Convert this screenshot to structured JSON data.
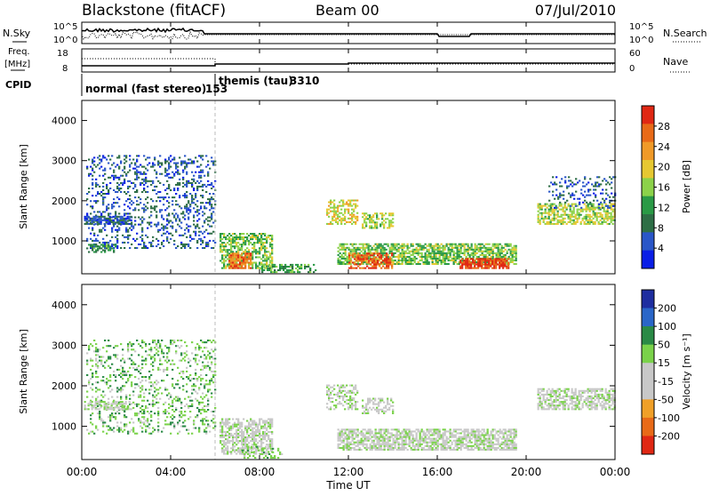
{
  "header": {
    "station": "Blackstone (fitACF)",
    "beam": "Beam 00",
    "date": "07/Jul/2010"
  },
  "noise_panel": {
    "left_label": "N.Sky",
    "right_label": "N.Search",
    "left_ticks": [
      "10^5",
      "10^0"
    ],
    "right_ticks": [
      "10^5",
      "10^0"
    ]
  },
  "freq_panel": {
    "left_label_lines": [
      "Freq.",
      "[MHz]"
    ],
    "right_label": "Nave",
    "left_ticks": [
      "18",
      "8"
    ],
    "right_ticks": [
      "60",
      "0"
    ]
  },
  "cpid": {
    "label": "CPID",
    "modes": [
      {
        "name": "normal (fast stereo)",
        "id": "153",
        "start_hour": 0,
        "end_hour": 6
      },
      {
        "name": "themis (tau)",
        "id": "3310",
        "start_hour": 6,
        "end_hour": 24
      }
    ]
  },
  "time_axis": {
    "label": "Time UT",
    "ticks": [
      "00:00",
      "04:00",
      "08:00",
      "12:00",
      "16:00",
      "20:00",
      "00:00"
    ],
    "range_hours": [
      0,
      24
    ]
  },
  "colors": {
    "power_scale": [
      "#0a1ee6",
      "#2a56c8",
      "#2e6e46",
      "#2a9a46",
      "#8cd24a",
      "#e6c832",
      "#f09a28",
      "#e86a18",
      "#e02814"
    ],
    "velocity_scale": [
      "#1e2ea0",
      "#2a66c8",
      "#2a8a46",
      "#7ad24a",
      "#c8c8c8",
      "#c8c8c8",
      "#f0a028",
      "#e86a18",
      "#e02814"
    ]
  },
  "chart_data": [
    {
      "type": "heatmap",
      "panel": "power",
      "ylabel": "Slant Range [km]",
      "xlabel": "Time UT",
      "ylim": [
        180,
        4500
      ],
      "xlim": [
        0,
        24
      ],
      "yticks": [
        "1000",
        "2000",
        "3000",
        "4000"
      ],
      "colorbar": {
        "label": "Power [dB]",
        "ticks": [
          "4",
          "8",
          "12",
          "16",
          "20",
          "24",
          "28"
        ],
        "range": [
          0,
          30
        ]
      },
      "echo_regions": [
        {
          "t0": 0.2,
          "t1": 6.0,
          "r0": 800,
          "r1": 3100,
          "value": 6,
          "density": 0.25
        },
        {
          "t0": 0.1,
          "t1": 2.2,
          "r0": 1400,
          "r1": 1600,
          "value": 6,
          "density": 0.7
        },
        {
          "t0": 0.2,
          "t1": 1.5,
          "r0": 700,
          "r1": 900,
          "value": 10,
          "density": 0.6
        },
        {
          "t0": 6.2,
          "t1": 8.6,
          "r0": 300,
          "r1": 1200,
          "value": 14,
          "density": 0.6
        },
        {
          "t0": 6.6,
          "t1": 7.6,
          "r0": 300,
          "r1": 700,
          "value": 24,
          "density": 0.8
        },
        {
          "t0": 8.0,
          "t1": 10.5,
          "r0": 200,
          "r1": 400,
          "value": 12,
          "density": 0.4
        },
        {
          "t0": 11.0,
          "t1": 12.4,
          "r0": 1400,
          "r1": 2000,
          "value": 18,
          "density": 0.5
        },
        {
          "t0": 12.6,
          "t1": 14.0,
          "r0": 1300,
          "r1": 1700,
          "value": 16,
          "density": 0.5
        },
        {
          "t0": 11.5,
          "t1": 19.5,
          "r0": 400,
          "r1": 900,
          "value": 14,
          "density": 0.7
        },
        {
          "t0": 12.0,
          "t1": 14.0,
          "r0": 300,
          "r1": 700,
          "value": 26,
          "density": 0.6
        },
        {
          "t0": 17.0,
          "t1": 19.2,
          "r0": 300,
          "r1": 550,
          "value": 28,
          "density": 0.8
        },
        {
          "t0": 20.5,
          "t1": 24.0,
          "r0": 1400,
          "r1": 1900,
          "value": 16,
          "density": 0.6
        },
        {
          "t0": 21.0,
          "t1": 24.0,
          "r0": 1800,
          "r1": 2600,
          "value": 6,
          "density": 0.2
        }
      ]
    },
    {
      "type": "heatmap",
      "panel": "velocity",
      "ylabel": "Slant Range [km]",
      "xlabel": "Time UT",
      "ylim": [
        180,
        4500
      ],
      "xlim": [
        0,
        24
      ],
      "yticks": [
        "1000",
        "2000",
        "3000",
        "4000"
      ],
      "colorbar": {
        "label": "Velocity [m s⁻¹]",
        "ticks": [
          "200",
          "100",
          "50",
          "15",
          "-15",
          "-50",
          "-100",
          "-200"
        ],
        "range": [
          -250,
          250
        ]
      },
      "echo_regions": [
        {
          "t0": 0.2,
          "t1": 6.0,
          "r0": 800,
          "r1": 3100,
          "value": 60,
          "density": 0.22
        },
        {
          "t0": 0.1,
          "t1": 2.2,
          "r0": 1400,
          "r1": 1600,
          "value": 0,
          "density": 0.6
        },
        {
          "t0": 6.2,
          "t1": 8.6,
          "r0": 300,
          "r1": 1200,
          "value": 0,
          "density": 0.6
        },
        {
          "t0": 7.2,
          "t1": 9.0,
          "r0": 200,
          "r1": 500,
          "value": 40,
          "density": 0.3
        },
        {
          "t0": 11.0,
          "t1": 12.4,
          "r0": 1400,
          "r1": 2000,
          "value": 0,
          "density": 0.5
        },
        {
          "t0": 12.6,
          "t1": 14.0,
          "r0": 1300,
          "r1": 1700,
          "value": 0,
          "density": 0.5
        },
        {
          "t0": 11.5,
          "t1": 19.5,
          "r0": 400,
          "r1": 900,
          "value": 0,
          "density": 0.7
        },
        {
          "t0": 20.5,
          "t1": 24.0,
          "r0": 1400,
          "r1": 1900,
          "value": 0,
          "density": 0.6
        }
      ]
    }
  ]
}
